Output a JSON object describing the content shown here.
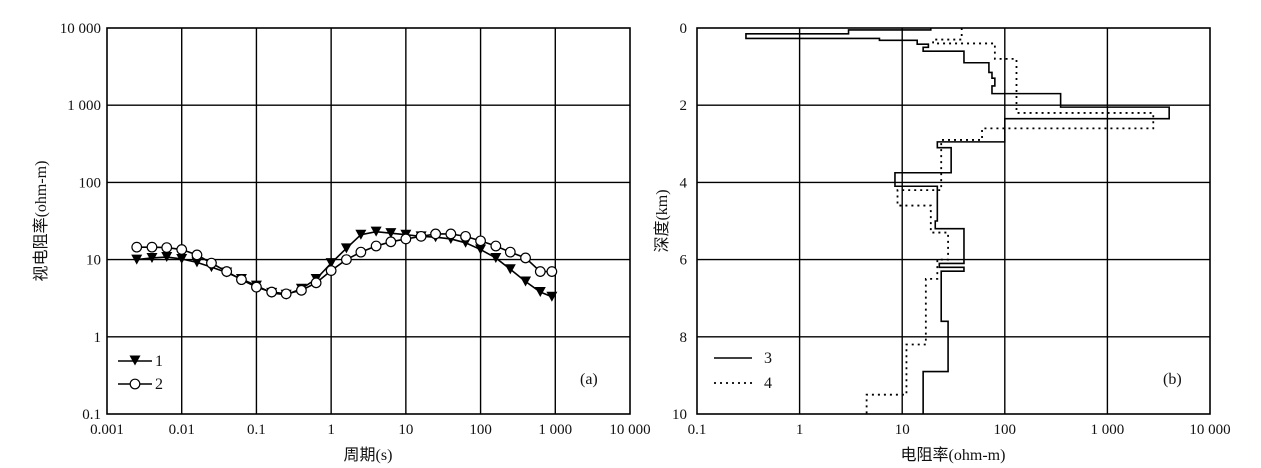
{
  "chart_data": [
    {
      "type": "line",
      "panel_label": "(a)",
      "xlabel": "周期(s)",
      "ylabel": "视电阻率(ohm-m)",
      "xscale": "log",
      "yscale": "log",
      "xlim": [
        0.001,
        10000
      ],
      "ylim": [
        0.1,
        10000
      ],
      "grid": true,
      "legend_position": "bottom-left",
      "x_tick_labels": [
        "0.001",
        "0.01",
        "0.1",
        "1",
        "10",
        "100",
        "1 000",
        "10 000"
      ],
      "y_tick_labels": [
        "0.1",
        "1",
        "10",
        "100",
        "1 000",
        "10 000"
      ],
      "series": [
        {
          "name": "1",
          "marker": "filled-down-triangle",
          "points": [
            [
              0.0025,
              10.0
            ],
            [
              0.004,
              10.5
            ],
            [
              0.0063,
              10.8
            ],
            [
              0.01,
              10.2
            ],
            [
              0.016,
              9.2
            ],
            [
              0.025,
              8.0
            ],
            [
              0.04,
              6.8
            ],
            [
              0.063,
              5.6
            ],
            [
              0.1,
              4.6
            ],
            [
              0.16,
              3.7
            ],
            [
              0.25,
              3.5
            ],
            [
              0.4,
              4.2
            ],
            [
              0.63,
              5.6
            ],
            [
              1.0,
              9.0
            ],
            [
              1.6,
              14.0
            ],
            [
              2.5,
              21.0
            ],
            [
              4.0,
              23.0
            ],
            [
              6.3,
              22.0
            ],
            [
              10,
              21.0
            ],
            [
              16,
              20.0
            ],
            [
              25,
              19.5
            ],
            [
              40,
              18.5
            ],
            [
              63,
              16.5
            ],
            [
              100,
              13.5
            ],
            [
              160,
              10.5
            ],
            [
              250,
              7.5
            ],
            [
              400,
              5.2
            ],
            [
              630,
              3.8
            ],
            [
              900,
              3.3
            ]
          ]
        },
        {
          "name": "2",
          "marker": "open-circle",
          "points": [
            [
              0.0025,
              14.5
            ],
            [
              0.004,
              14.5
            ],
            [
              0.0063,
              14.3
            ],
            [
              0.01,
              13.5
            ],
            [
              0.016,
              11.5
            ],
            [
              0.025,
              9.0
            ],
            [
              0.04,
              7.0
            ],
            [
              0.063,
              5.5
            ],
            [
              0.1,
              4.4
            ],
            [
              0.16,
              3.8
            ],
            [
              0.25,
              3.6
            ],
            [
              0.4,
              4.0
            ],
            [
              0.63,
              5.0
            ],
            [
              1.0,
              7.2
            ],
            [
              1.6,
              10.0
            ],
            [
              2.5,
              12.5
            ],
            [
              4.0,
              15.0
            ],
            [
              6.3,
              17.0
            ],
            [
              10,
              18.5
            ],
            [
              16,
              20.0
            ],
            [
              25,
              21.5
            ],
            [
              40,
              21.5
            ],
            [
              63,
              20.0
            ],
            [
              100,
              17.5
            ],
            [
              160,
              15.0
            ],
            [
              250,
              12.5
            ],
            [
              400,
              10.5
            ],
            [
              630,
              7.0
            ],
            [
              900,
              7.0
            ]
          ]
        }
      ]
    },
    {
      "type": "line",
      "panel_label": "(b)",
      "xlabel": "电阻率(ohm-m)",
      "ylabel": "深度(km)",
      "xscale": "log",
      "yscale": "linear",
      "y_inverted": true,
      "xlim": [
        0.1,
        10000
      ],
      "ylim": [
        0,
        10
      ],
      "grid": true,
      "legend_position": "bottom-left",
      "x_tick_labels": [
        "0.1",
        "1",
        "10",
        "100",
        "1 000",
        "10 000"
      ],
      "y_tick_labels": [
        "0",
        "2",
        "4",
        "6",
        "8",
        "10"
      ],
      "series": [
        {
          "name": "3",
          "style": "solid",
          "points": [
            [
              19,
              0.0
            ],
            [
              19,
              0.05
            ],
            [
              3.0,
              0.05
            ],
            [
              3.0,
              0.15
            ],
            [
              0.3,
              0.15
            ],
            [
              0.3,
              0.27
            ],
            [
              6.0,
              0.27
            ],
            [
              6.0,
              0.32
            ],
            [
              14,
              0.32
            ],
            [
              14,
              0.42
            ],
            [
              18,
              0.42
            ],
            [
              18,
              0.5
            ],
            [
              16,
              0.5
            ],
            [
              16,
              0.6
            ],
            [
              40,
              0.6
            ],
            [
              40,
              0.9
            ],
            [
              70,
              0.9
            ],
            [
              70,
              1.15
            ],
            [
              75,
              1.15
            ],
            [
              75,
              1.3
            ],
            [
              80,
              1.3
            ],
            [
              80,
              1.5
            ],
            [
              75,
              1.5
            ],
            [
              75,
              1.7
            ],
            [
              350,
              1.7
            ],
            [
              350,
              2.05
            ],
            [
              4000,
              2.05
            ],
            [
              4000,
              2.35
            ],
            [
              100,
              2.35
            ],
            [
              100,
              2.95
            ],
            [
              22,
              2.95
            ],
            [
              22,
              3.1
            ],
            [
              30,
              3.1
            ],
            [
              30,
              3.75
            ],
            [
              8.5,
              3.75
            ],
            [
              8.5,
              4.1
            ],
            [
              22,
              4.1
            ],
            [
              22,
              5.0
            ],
            [
              21,
              5.0
            ],
            [
              21,
              5.2
            ],
            [
              40,
              5.2
            ],
            [
              40,
              6.1
            ],
            [
              23,
              6.1
            ],
            [
              23,
              6.2
            ],
            [
              40,
              6.2
            ],
            [
              40,
              6.3
            ],
            [
              24,
              6.3
            ],
            [
              24,
              7.6
            ],
            [
              28,
              7.6
            ],
            [
              28,
              8.9
            ],
            [
              16,
              8.9
            ],
            [
              16,
              10.0
            ]
          ]
        },
        {
          "name": "4",
          "style": "dotted",
          "points": [
            [
              38,
              0.0
            ],
            [
              38,
              0.3
            ],
            [
              20,
              0.3
            ],
            [
              20,
              0.4
            ],
            [
              80,
              0.4
            ],
            [
              80,
              0.8
            ],
            [
              130,
              0.8
            ],
            [
              130,
              2.2
            ],
            [
              2800,
              2.2
            ],
            [
              2800,
              2.6
            ],
            [
              60,
              2.6
            ],
            [
              60,
              2.9
            ],
            [
              24,
              2.9
            ],
            [
              24,
              4.2
            ],
            [
              9.0,
              4.2
            ],
            [
              9.0,
              4.6
            ],
            [
              19,
              4.6
            ],
            [
              19,
              5.3
            ],
            [
              28,
              5.3
            ],
            [
              28,
              6.0
            ],
            [
              22,
              6.0
            ],
            [
              22,
              6.5
            ],
            [
              17,
              6.5
            ],
            [
              17,
              8.2
            ],
            [
              11,
              8.2
            ],
            [
              11,
              9.5
            ],
            [
              4.5,
              9.5
            ],
            [
              4.5,
              10.0
            ]
          ]
        }
      ]
    }
  ]
}
